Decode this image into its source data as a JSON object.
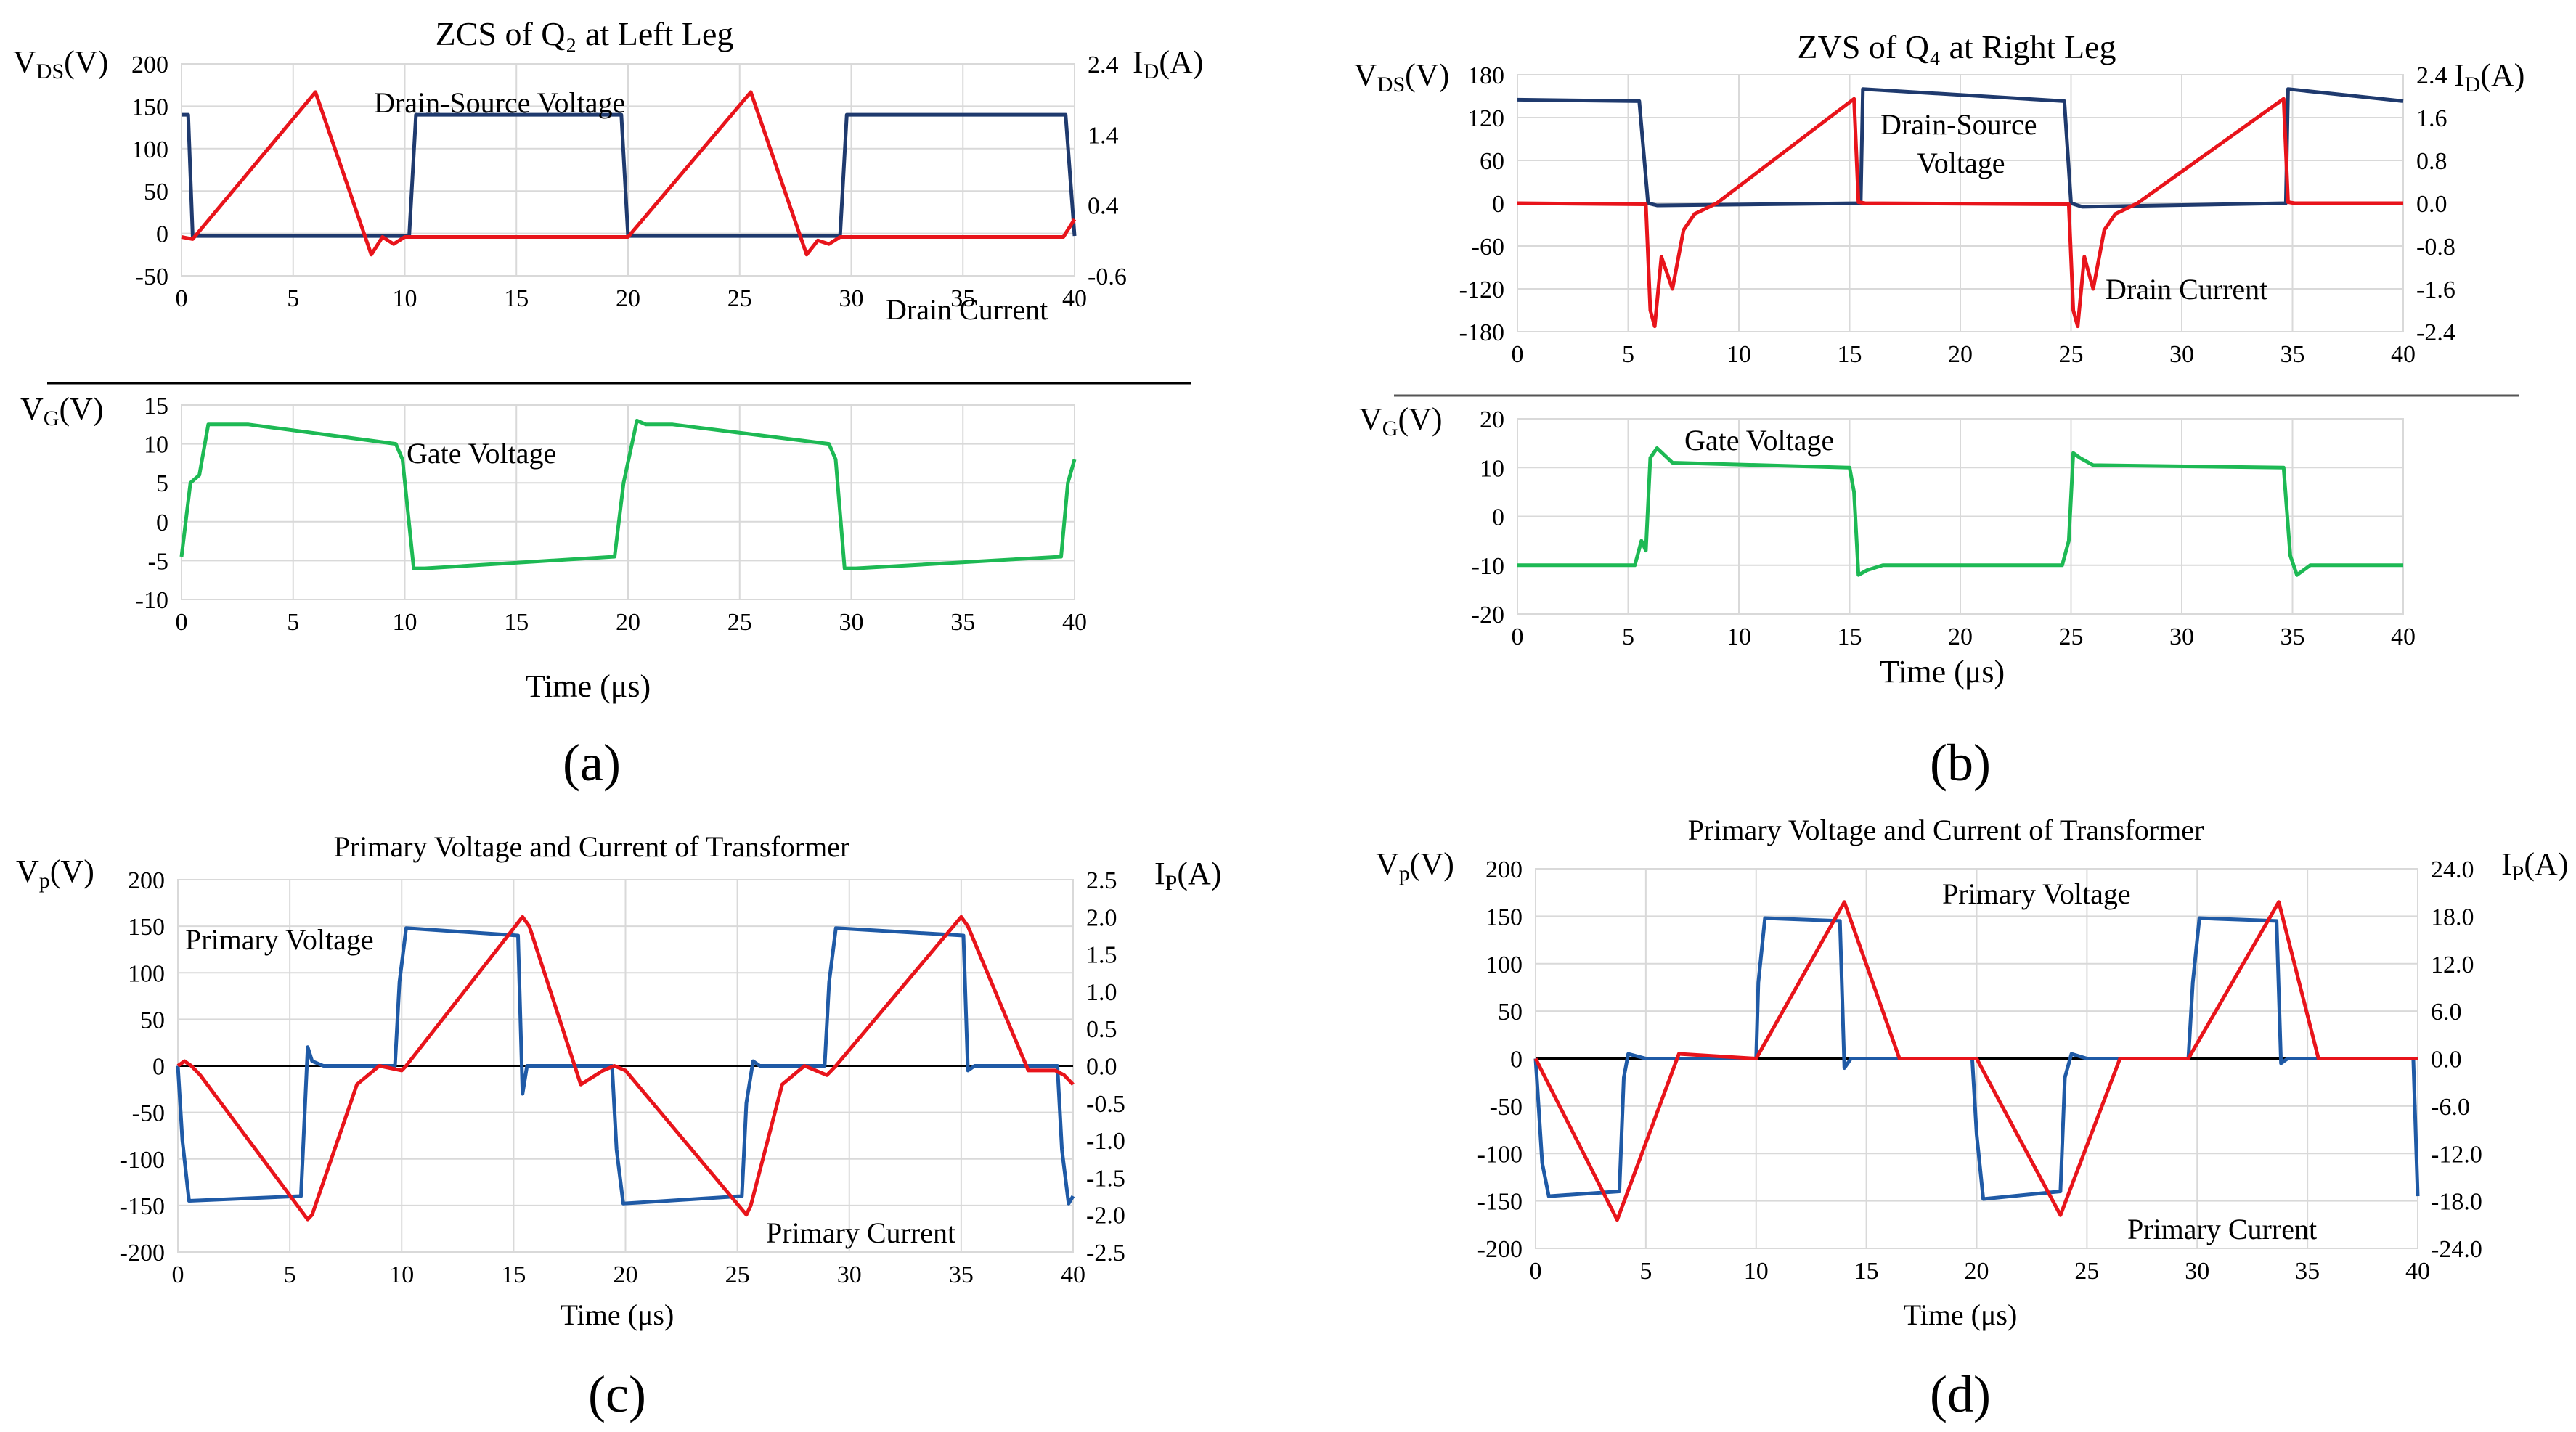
{
  "panels": [
    {
      "id": "a",
      "label": "(a)"
    },
    {
      "id": "b",
      "label": "(b)"
    },
    {
      "id": "c",
      "label": "(c)"
    },
    {
      "id": "d",
      "label": "(d)"
    }
  ],
  "colors": {
    "vds": "#1f3a6e",
    "id": "#e8141b",
    "vg": "#1db954",
    "vp": "#1f5aa6",
    "ip": "#e8141b",
    "zero": "#000000"
  },
  "chart_data": [
    {
      "id": "a-top",
      "type": "line",
      "title": "ZCS of Q₂ at Left Leg",
      "ylabel": "V_DS(V)",
      "y2label": "I_D(A)",
      "xlim": [
        0,
        40
      ],
      "ylim": [
        -50,
        200
      ],
      "y2lim": [
        -0.6,
        2.4
      ],
      "xticks": [
        0,
        5,
        10,
        15,
        20,
        25,
        30,
        35,
        40
      ],
      "yticks": [
        -50,
        0,
        50,
        100,
        150,
        200
      ],
      "y2ticks": [
        -0.6,
        0.4,
        1.4,
        2.4
      ],
      "series": [
        {
          "name": "Drain-Source Voltage",
          "axis": "y1",
          "color": "#1f3a6e",
          "x": [
            0,
            0.3,
            0.5,
            10.2,
            10.5,
            19.7,
            20,
            29.5,
            29.8,
            39.6,
            40
          ],
          "y": [
            140,
            140,
            -3,
            -3,
            140,
            140,
            -3,
            -3,
            140,
            140,
            -3
          ]
        },
        {
          "name": "Drain Current",
          "axis": "y2",
          "color": "#e8141b",
          "x": [
            0,
            0.5,
            6,
            8.5,
            9,
            9.5,
            10,
            20,
            25.5,
            28,
            28.5,
            29,
            29.5,
            39.5,
            40
          ],
          "y": [
            -0.05,
            -0.08,
            2.0,
            -0.3,
            -0.05,
            -0.15,
            -0.05,
            -0.05,
            2.0,
            -0.3,
            -0.1,
            -0.15,
            -0.05,
            -0.05,
            0.2
          ]
        }
      ]
    },
    {
      "id": "a-bottom",
      "type": "line",
      "ylabel": "V_G(V)",
      "xlabel": "Time (μs)",
      "xlim": [
        0,
        40
      ],
      "ylim": [
        -10,
        15
      ],
      "xticks": [
        0,
        5,
        10,
        15,
        20,
        25,
        30,
        35,
        40
      ],
      "yticks": [
        -10,
        -5,
        0,
        5,
        10,
        15
      ],
      "series": [
        {
          "name": "Gate Voltage",
          "color": "#1db954",
          "x": [
            0,
            0.4,
            0.8,
            1.2,
            3,
            9.6,
            9.9,
            10.4,
            10.9,
            19.4,
            19.8,
            20.4,
            20.8,
            22,
            29.0,
            29.3,
            29.7,
            30.2,
            39.4,
            39.7,
            40
          ],
          "y": [
            -4.5,
            5,
            6,
            12.5,
            12.5,
            10,
            8,
            -6,
            -6,
            -4.5,
            5,
            13,
            12.5,
            12.5,
            10,
            8,
            -6,
            -6,
            -4.5,
            5,
            8
          ]
        }
      ]
    },
    {
      "id": "b-top",
      "type": "line",
      "title": "ZVS of Q₄ at Right Leg",
      "ylabel": "V_DS(V)",
      "y2label": "I_D(A)",
      "xlim": [
        0,
        40
      ],
      "ylim": [
        -180,
        180
      ],
      "y2lim": [
        -2.4,
        2.4
      ],
      "xticks": [
        0,
        5,
        10,
        15,
        20,
        25,
        30,
        35,
        40
      ],
      "yticks": [
        -180,
        -120,
        -60,
        0,
        60,
        120,
        180
      ],
      "y2ticks": [
        -2.4,
        -1.6,
        -0.8,
        0.0,
        0.8,
        1.6,
        2.4
      ],
      "series": [
        {
          "name": "Drain-Source Voltage",
          "axis": "y1",
          "color": "#1f3a6e",
          "x": [
            0,
            5.5,
            5.9,
            6.3,
            15.5,
            15.6,
            24.7,
            25.0,
            25.5,
            34.7,
            34.8,
            40
          ],
          "y": [
            145,
            143,
            0,
            -3,
            0,
            160,
            143,
            0,
            -5,
            0,
            160,
            143
          ]
        },
        {
          "name": "Drain Current",
          "axis": "y2",
          "color": "#e8141b",
          "x": [
            0,
            5.8,
            6.0,
            6.2,
            6.5,
            7,
            7.5,
            8,
            8.5,
            9,
            15.2,
            15.4,
            15.7,
            24.9,
            25.1,
            25.3,
            25.6,
            26,
            26.5,
            27,
            27.5,
            28,
            34.6,
            34.8,
            35.1,
            40
          ],
          "y": [
            0,
            -0.02,
            -2.0,
            -2.3,
            -1.0,
            -1.6,
            -0.5,
            -0.2,
            -0.1,
            0.0,
            1.95,
            0.02,
            0,
            -0.02,
            -2.0,
            -2.3,
            -1.0,
            -1.6,
            -0.5,
            -0.2,
            -0.1,
            0.0,
            1.95,
            0.02,
            0,
            0
          ]
        }
      ]
    },
    {
      "id": "b-bottom",
      "type": "line",
      "ylabel": "V_G(V)",
      "xlabel": "Time (μs)",
      "xlim": [
        0,
        40
      ],
      "ylim": [
        -20,
        20
      ],
      "xticks": [
        0,
        5,
        10,
        15,
        20,
        25,
        30,
        35,
        40
      ],
      "yticks": [
        -20,
        -10,
        0,
        10,
        20
      ],
      "series": [
        {
          "name": "Gate Voltage",
          "color": "#1db954",
          "x": [
            0,
            5.3,
            5.6,
            5.8,
            6.0,
            6.3,
            7,
            15,
            15.2,
            15.4,
            15.8,
            16.5,
            24.6,
            24.9,
            25.1,
            25.4,
            26,
            34.6,
            34.9,
            35.2,
            35.8,
            40
          ],
          "y": [
            -10,
            -10,
            -5,
            -7,
            12,
            14,
            11,
            10,
            5,
            -12,
            -11,
            -10,
            -10,
            -5,
            13,
            12,
            10.5,
            10,
            -8,
            -12,
            -10,
            -10
          ]
        }
      ]
    },
    {
      "id": "c",
      "type": "line",
      "title": "Primary Voltage and Current of Transformer",
      "ylabel": "V_p(V)",
      "y2label": "I_P(A)",
      "xlabel": "Time (μs)",
      "xlim": [
        0,
        40
      ],
      "ylim": [
        -200,
        200
      ],
      "y2lim": [
        -2.5,
        2.5
      ],
      "xticks": [
        0,
        5,
        10,
        15,
        20,
        25,
        30,
        35,
        40
      ],
      "yticks": [
        -200,
        -150,
        -100,
        -50,
        0,
        50,
        100,
        150,
        200
      ],
      "y2ticks": [
        -2.5,
        -2.0,
        -1.5,
        -1.0,
        -0.5,
        0.0,
        0.5,
        1.0,
        1.5,
        2.0,
        2.5
      ],
      "series": [
        {
          "name": "Primary Voltage",
          "axis": "y1",
          "color": "#1f5aa6",
          "x": [
            0,
            0.2,
            0.5,
            5.5,
            5.8,
            6.0,
            6.5,
            9.7,
            9.9,
            10.2,
            15.2,
            15.4,
            15.6,
            16,
            19.4,
            19.6,
            19.9,
            25.2,
            25.4,
            25.7,
            26,
            28.9,
            29.1,
            29.4,
            35.1,
            35.3,
            35.6,
            36,
            39.3,
            39.5,
            39.8,
            40
          ],
          "y": [
            0,
            -80,
            -145,
            -140,
            20,
            5,
            0,
            0,
            90,
            148,
            140,
            -30,
            0,
            0,
            0,
            -90,
            -148,
            -140,
            -40,
            5,
            0,
            0,
            90,
            148,
            140,
            -5,
            0,
            0,
            0,
            -90,
            -148,
            -140
          ]
        },
        {
          "name": "Primary Current",
          "axis": "y1",
          "color": "#e8141b",
          "x": [
            0,
            0.3,
            0.6,
            1,
            5.8,
            6.0,
            8,
            9,
            10,
            10.2,
            15.4,
            15.7,
            18,
            19,
            19.5,
            20,
            25.4,
            25.6,
            27,
            28,
            29,
            29.4,
            35,
            35.3,
            38,
            39.2,
            39.6,
            40
          ],
          "y": [
            0,
            5,
            0,
            -10,
            -165,
            -160,
            -20,
            0,
            -5,
            0,
            160,
            150,
            -20,
            -5,
            0,
            -5,
            -160,
            -150,
            -20,
            0,
            -10,
            0,
            160,
            150,
            -5,
            -5,
            -10,
            -20
          ]
        }
      ]
    },
    {
      "id": "d",
      "type": "line",
      "title": "Primary Voltage and Current of Transformer",
      "ylabel": "V_p(V)",
      "y2label": "I_P(A)",
      "xlabel": "Time (μs)",
      "xlim": [
        0,
        40
      ],
      "ylim": [
        -200,
        200
      ],
      "y2lim": [
        -24,
        24
      ],
      "xticks": [
        0,
        5,
        10,
        15,
        20,
        25,
        30,
        35,
        40
      ],
      "yticks": [
        -200,
        -150,
        -100,
        -50,
        0,
        50,
        100,
        150,
        200
      ],
      "y2ticks": [
        -24.0,
        -18.0,
        -12.0,
        -6.0,
        0.0,
        6.0,
        12.0,
        18.0,
        24.0
      ],
      "series": [
        {
          "name": "Primary Voltage",
          "axis": "y1",
          "color": "#1f5aa6",
          "x": [
            0,
            0.3,
            0.6,
            3.8,
            4.0,
            4.2,
            5,
            10,
            10.1,
            10.4,
            13.8,
            14.0,
            14.3,
            15,
            19.8,
            20.0,
            20.3,
            23.8,
            24.0,
            24.3,
            25,
            29.6,
            29.8,
            30.1,
            33.6,
            33.8,
            34.1,
            35,
            39.8,
            40
          ],
          "y": [
            0,
            -110,
            -145,
            -140,
            -20,
            5,
            0,
            0,
            80,
            148,
            145,
            -10,
            0,
            0,
            0,
            -80,
            -148,
            -140,
            -20,
            5,
            0,
            0,
            80,
            148,
            145,
            -5,
            0,
            0,
            0,
            -145
          ]
        },
        {
          "name": "Primary Current",
          "axis": "y1",
          "color": "#e8141b",
          "x": [
            0,
            3.7,
            6.5,
            10,
            14.0,
            16.5,
            20,
            23.8,
            26.5,
            29.6,
            33.7,
            35.5,
            40
          ],
          "y": [
            0,
            -170,
            5,
            0,
            165,
            0,
            0,
            -165,
            0,
            0,
            165,
            0,
            0
          ]
        }
      ]
    }
  ],
  "text": {
    "a_vds_label": "Drain-Source Voltage",
    "a_id_label": "Drain Current",
    "a_vg_label": "Gate Voltage",
    "b_vds_label1": "Drain-Source",
    "b_vds_label2": "Voltage",
    "b_id_label": "Drain Current",
    "b_vg_label": "Gate Voltage",
    "c_vp_label": "Primary Voltage",
    "c_ip_label": "Primary Current",
    "d_vp_label": "Primary Voltage",
    "d_ip_label": "Primary Current",
    "time_label": "Time (μs)"
  }
}
